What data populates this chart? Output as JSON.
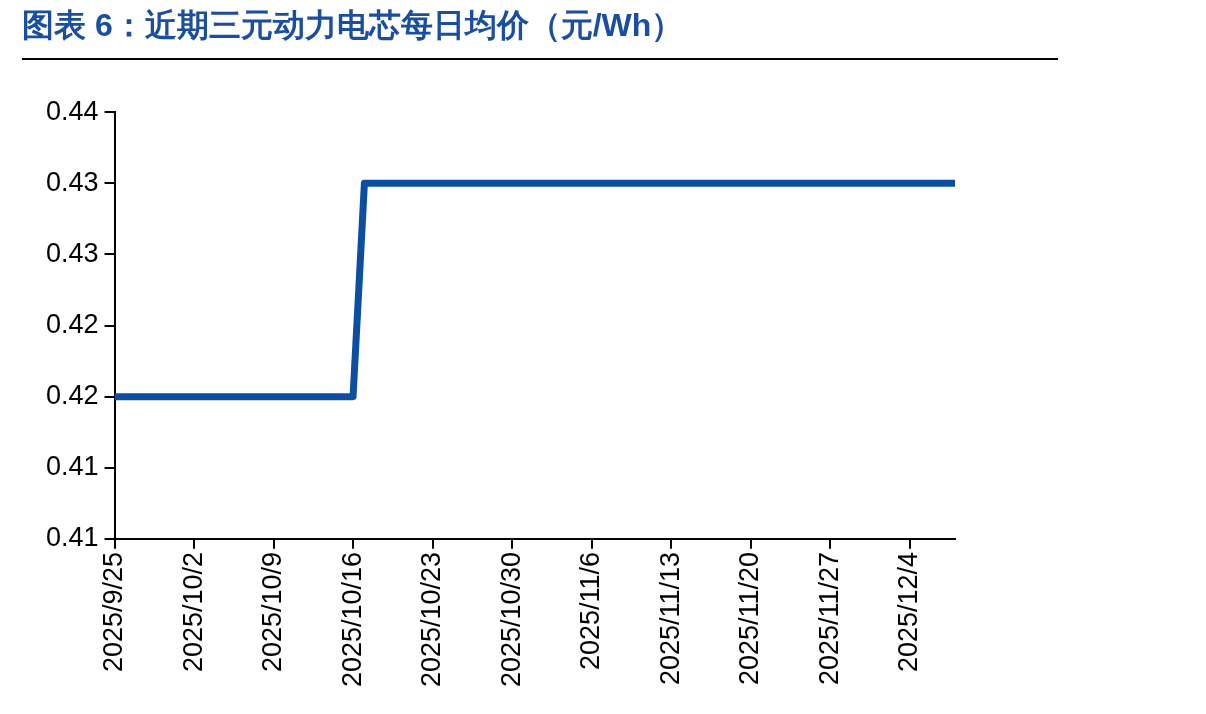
{
  "chart_data": {
    "type": "line",
    "title": "图表 6：近期三元动力电芯每日均价（元/Wh）",
    "x": [
      "2025-09-25",
      "2025-10-16",
      "2025-10-17",
      "2025-12-08"
    ],
    "series": [
      {
        "color": "#0b4ea2",
        "values": [
          0.42,
          0.42,
          0.435,
          0.435
        ]
      }
    ],
    "xlim": [
      "2025-09-25",
      "2025-12-08"
    ],
    "xticks": [
      {
        "value": "2025-09-25",
        "label": "2025/9/25"
      },
      {
        "value": "2025-10-02",
        "label": "2025/10/2"
      },
      {
        "value": "2025-10-09",
        "label": "2025/10/9"
      },
      {
        "value": "2025-10-16",
        "label": "2025/10/16"
      },
      {
        "value": "2025-10-23",
        "label": "2025/10/23"
      },
      {
        "value": "2025-10-30",
        "label": "2025/10/30"
      },
      {
        "value": "2025-11-06",
        "label": "2025/11/6"
      },
      {
        "value": "2025-11-13",
        "label": "2025/11/13"
      },
      {
        "value": "2025-11-20",
        "label": "2025/11/20"
      },
      {
        "value": "2025-11-27",
        "label": "2025/11/27"
      },
      {
        "value": "2025-12-04",
        "label": "2025/12/4"
      }
    ],
    "ylim": [
      0.41,
      0.44
    ],
    "yticks": [
      {
        "value": 0.41,
        "label": "0.41"
      },
      {
        "value": 0.415,
        "label": "0.41"
      },
      {
        "value": 0.42,
        "label": "0.42"
      },
      {
        "value": 0.425,
        "label": "0.42"
      },
      {
        "value": 0.43,
        "label": "0.43"
      },
      {
        "value": 0.435,
        "label": "0.43"
      },
      {
        "value": 0.44,
        "label": "0.44"
      }
    ],
    "grid": false,
    "legend": false,
    "marker": "none",
    "line_style": "solid"
  }
}
